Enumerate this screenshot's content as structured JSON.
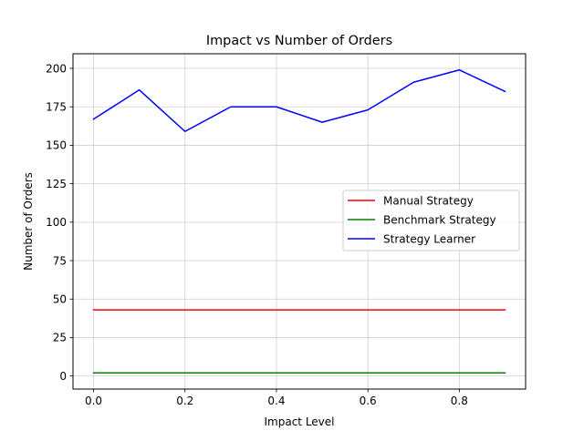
{
  "chart_data": {
    "type": "line",
    "title": "Impact vs Number of Orders",
    "xlabel": "Impact Level",
    "ylabel": "Number of Orders",
    "x": [
      0.0,
      0.1,
      0.2,
      0.3,
      0.4,
      0.5,
      0.6,
      0.7,
      0.8,
      0.9
    ],
    "xlim": [
      -0.045,
      0.945
    ],
    "ylim": [
      -8.5,
      209.5
    ],
    "x_ticks": [
      0.0,
      0.2,
      0.4,
      0.6,
      0.8
    ],
    "x_tick_labels": [
      "0.0",
      "0.2",
      "0.4",
      "0.6",
      "0.8"
    ],
    "y_ticks": [
      0,
      25,
      50,
      75,
      100,
      125,
      150,
      175,
      200
    ],
    "y_tick_labels": [
      "0",
      "25",
      "50",
      "75",
      "100",
      "125",
      "150",
      "175",
      "200"
    ],
    "grid": true,
    "legend_position": "center-right",
    "series": [
      {
        "name": "Manual Strategy",
        "color": "#ff0000",
        "values": [
          43,
          43,
          43,
          43,
          43,
          43,
          43,
          43,
          43,
          43
        ]
      },
      {
        "name": "Benchmark Strategy",
        "color": "#008000",
        "values": [
          2,
          2,
          2,
          2,
          2,
          2,
          2,
          2,
          2,
          2
        ]
      },
      {
        "name": "Strategy Learner",
        "color": "#0000ff",
        "values": [
          167,
          186,
          159,
          175,
          175,
          165,
          173,
          191,
          199,
          185
        ]
      }
    ]
  }
}
